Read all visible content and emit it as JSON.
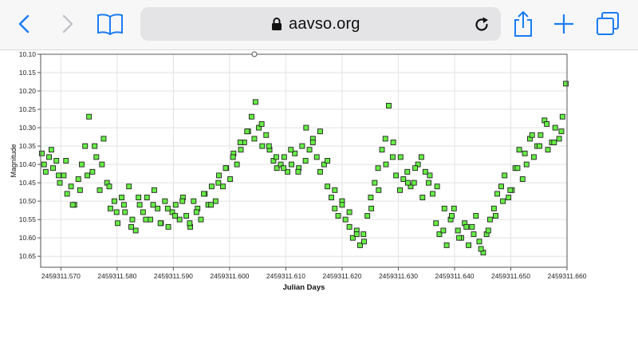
{
  "browser": {
    "url": "aavso.org",
    "icons": {
      "back": "chevron-left-icon",
      "forward": "chevron-right-icon",
      "bookmarks": "book-icon",
      "lock": "lock-icon",
      "reload": "reload-icon",
      "share": "share-icon",
      "new_tab": "plus-icon",
      "tabs": "tabs-icon"
    },
    "accent_color": "#1a7cf5"
  },
  "chart_data": {
    "type": "scatter",
    "xlabel": "Julian Days",
    "ylabel": "Magnitude",
    "xlim": [
      2459311.5664,
      2459311.66
    ],
    "ylim": [
      10.1,
      10.68
    ],
    "y_inverted": true,
    "grid": true,
    "x_ticks": [
      2459311.57,
      2459311.58,
      2459311.59,
      2459311.6,
      2459311.61,
      2459311.62,
      2459311.63,
      2459311.64,
      2459311.65,
      2459311.66
    ],
    "x_tick_labels": [
      "2459311.570",
      "2459311.580",
      "2459311.590",
      "2459311.600",
      "2459311.610",
      "2459311.620",
      "2459311.630",
      "2459311.640",
      "2459311.650",
      "2459311.660"
    ],
    "y_ticks": [
      10.1,
      10.15,
      10.2,
      10.25,
      10.3,
      10.35,
      10.4,
      10.45,
      10.5,
      10.55,
      10.6,
      10.65
    ],
    "y_tick_labels": [
      "10.10",
      "10.15",
      "10.20",
      "10.25",
      "10.30",
      "10.35",
      "10.40",
      "10.45",
      "10.50",
      "10.55",
      "10.60",
      "10.65"
    ],
    "marker_color": "#66ee44",
    "marker_edge": "#222222",
    "series": [
      {
        "x": [
          2459311.5666,
          2459311.5673,
          2459311.5679,
          2459311.5686,
          2459311.5692,
          2459311.5698,
          2459311.5705,
          2459311.5711,
          2459311.5718,
          2459311.5724,
          2459311.5731,
          2459311.5737,
          2459311.5743,
          2459311.575,
          2459311.5756,
          2459311.5763,
          2459311.5769,
          2459311.5776,
          2459311.5782,
          2459311.5788,
          2459311.5795,
          2459311.5801,
          2459311.5808,
          2459311.5814,
          2459311.5821,
          2459311.5827,
          2459311.5833,
          2459311.584,
          2459311.5846,
          2459311.5853,
          2459311.5859,
          2459311.5866,
          2459311.5872,
          2459311.5878,
          2459311.5885,
          2459311.5891,
          2459311.5898,
          2459311.5904,
          2459311.5911,
          2459311.5917,
          2459311.5923,
          2459311.593,
          2459311.5936,
          2459311.5943,
          2459311.5949,
          2459311.5956,
          2459311.5962,
          2459311.5968,
          2459311.5975,
          2459311.5981,
          2459311.5988,
          2459311.5994,
          2459311.6001,
          2459311.6007,
          2459311.6013,
          2459311.602,
          2459311.6026,
          2459311.6033,
          2459311.6039,
          2459311.6046,
          2459311.6052,
          2459311.6058,
          2459311.6065,
          2459311.6071,
          2459311.6078,
          2459311.6084,
          2459311.6091,
          2459311.6097,
          2459311.6103,
          2459311.611,
          2459311.6116,
          2459311.6123,
          2459311.6129,
          2459311.6136,
          2459311.6142,
          2459311.6148,
          2459311.6155,
          2459311.6161,
          2459311.6168,
          2459311.6174,
          2459311.6181,
          2459311.6187,
          2459311.6193,
          2459311.62,
          2459311.6206,
          2459311.6213,
          2459311.6219,
          2459311.6226,
          2459311.6232,
          2459311.6238,
          2459311.6245,
          2459311.6251,
          2459311.6258,
          2459311.6264,
          2459311.6271,
          2459311.6277,
          2459311.6283,
          2459311.629,
          2459311.6296,
          2459311.6303,
          2459311.6309,
          2459311.6316,
          2459311.6322,
          2459311.6328,
          2459311.6335,
          2459311.6341,
          2459311.6348,
          2459311.6354,
          2459311.6361,
          2459311.6367,
          2459311.6373,
          2459311.638,
          2459311.6386,
          2459311.6393,
          2459311.6399,
          2459311.6406,
          2459311.6412,
          2459311.6418,
          2459311.6425,
          2459311.6431,
          2459311.6438,
          2459311.6444,
          2459311.6451,
          2459311.6457,
          2459311.6463,
          2459311.647,
          2459311.6476,
          2459311.6483,
          2459311.6489,
          2459311.6496,
          2459311.6502,
          2459311.6508,
          2459311.6515,
          2459311.6521,
          2459311.6528,
          2459311.6534,
          2459311.6541,
          2459311.6547,
          2459311.6553,
          2459311.656,
          2459311.6566,
          2459311.6573,
          2459311.6579,
          2459311.6586,
          2459311.6592,
          2459311.6598
        ],
        "y": [
          10.37,
          10.42,
          10.38,
          10.41,
          10.39,
          10.45,
          10.43,
          10.48,
          10.46,
          10.51,
          10.44,
          10.4,
          10.35,
          10.27,
          10.42,
          10.38,
          10.47,
          10.33,
          10.45,
          10.52,
          10.5,
          10.56,
          10.49,
          10.53,
          10.46,
          10.55,
          10.58,
          10.51,
          10.53,
          10.49,
          10.55,
          10.47,
          10.52,
          10.56,
          10.5,
          10.57,
          10.53,
          10.51,
          10.55,
          10.49,
          10.54,
          10.57,
          10.5,
          10.52,
          10.55,
          10.48,
          10.51,
          10.46,
          10.5,
          10.43,
          10.46,
          10.41,
          10.44,
          10.37,
          10.4,
          10.36,
          10.34,
          10.31,
          10.27,
          10.23,
          10.3,
          10.35,
          10.32,
          10.36,
          10.39,
          10.41,
          10.4,
          10.38,
          10.42,
          10.4,
          10.37,
          10.41,
          10.35,
          10.3,
          10.36,
          10.33,
          10.38,
          10.42,
          10.4,
          10.46,
          10.49,
          10.52,
          10.54,
          10.5,
          10.55,
          10.57,
          10.6,
          10.58,
          10.62,
          10.59,
          10.54,
          10.49,
          10.45,
          10.41,
          10.36,
          10.33,
          10.24,
          10.38,
          10.43,
          10.47,
          10.44,
          10.42,
          10.46,
          10.45,
          10.4,
          10.38,
          10.42,
          10.45,
          10.48,
          10.56,
          10.59,
          10.58,
          10.62,
          10.55,
          10.52,
          10.58,
          10.6,
          10.56,
          10.62,
          10.57,
          10.54,
          10.61,
          10.64,
          10.59,
          10.55,
          10.52,
          10.48,
          10.46,
          10.43,
          10.49,
          10.47,
          10.41,
          10.36,
          10.44,
          10.4,
          10.33,
          10.38,
          10.35,
          10.32,
          10.28,
          10.36,
          10.34,
          10.3,
          10.33,
          10.27,
          10.18
        ]
      },
      {
        "x": [
          2459311.567,
          2459311.5683,
          2459311.5696,
          2459311.5709,
          2459311.5721,
          2459311.5734,
          2459311.5747,
          2459311.576,
          2459311.5773,
          2459311.5786,
          2459311.5799,
          2459311.5812,
          2459311.5825,
          2459311.5838,
          2459311.5851,
          2459311.5864,
          2459311.5877,
          2459311.589,
          2459311.5903,
          2459311.5916,
          2459311.5929,
          2459311.5941,
          2459311.5954,
          2459311.5967,
          2459311.598,
          2459311.5993,
          2459311.6006,
          2459311.6019,
          2459311.6031,
          2459311.6044,
          2459311.6057,
          2459311.607,
          2459311.6083,
          2459311.6096,
          2459311.6109,
          2459311.6122,
          2459311.6135,
          2459311.6148,
          2459311.6161,
          2459311.6174,
          2459311.6187,
          2459311.62,
          2459311.6213,
          2459311.6226,
          2459311.6239,
          2459311.6252,
          2459311.6265,
          2459311.6278,
          2459311.6291,
          2459311.6304,
          2459311.6317,
          2459311.633,
          2459311.6343,
          2459311.6356,
          2459311.6369,
          2459311.6382,
          2459311.6395,
          2459311.6408,
          2459311.6421,
          2459311.6434,
          2459311.6447,
          2459311.646,
          2459311.6473,
          2459311.6486,
          2459311.6499,
          2459311.6512,
          2459311.6525,
          2459311.6538,
          2459311.6551,
          2459311.6564,
          2459311.6577,
          2459311.659
        ],
        "y": [
          10.4,
          10.36,
          10.43,
          10.39,
          10.51,
          10.47,
          10.43,
          10.35,
          10.4,
          10.46,
          10.53,
          10.51,
          10.57,
          10.49,
          10.55,
          10.51,
          10.56,
          10.52,
          10.54,
          10.5,
          10.56,
          10.53,
          10.48,
          10.51,
          10.45,
          10.41,
          10.38,
          10.34,
          10.31,
          10.33,
          10.29,
          10.35,
          10.38,
          10.41,
          10.36,
          10.42,
          10.39,
          10.34,
          10.31,
          10.39,
          10.47,
          10.51,
          10.53,
          10.59,
          10.61,
          10.52,
          10.47,
          10.4,
          10.34,
          10.38,
          10.45,
          10.41,
          10.49,
          10.43,
          10.46,
          10.52,
          10.54,
          10.6,
          10.57,
          10.59,
          10.63,
          10.58,
          10.54,
          10.5,
          10.47,
          10.41,
          10.37,
          10.32,
          10.35,
          10.29,
          10.34,
          10.31
        ]
      }
    ]
  }
}
